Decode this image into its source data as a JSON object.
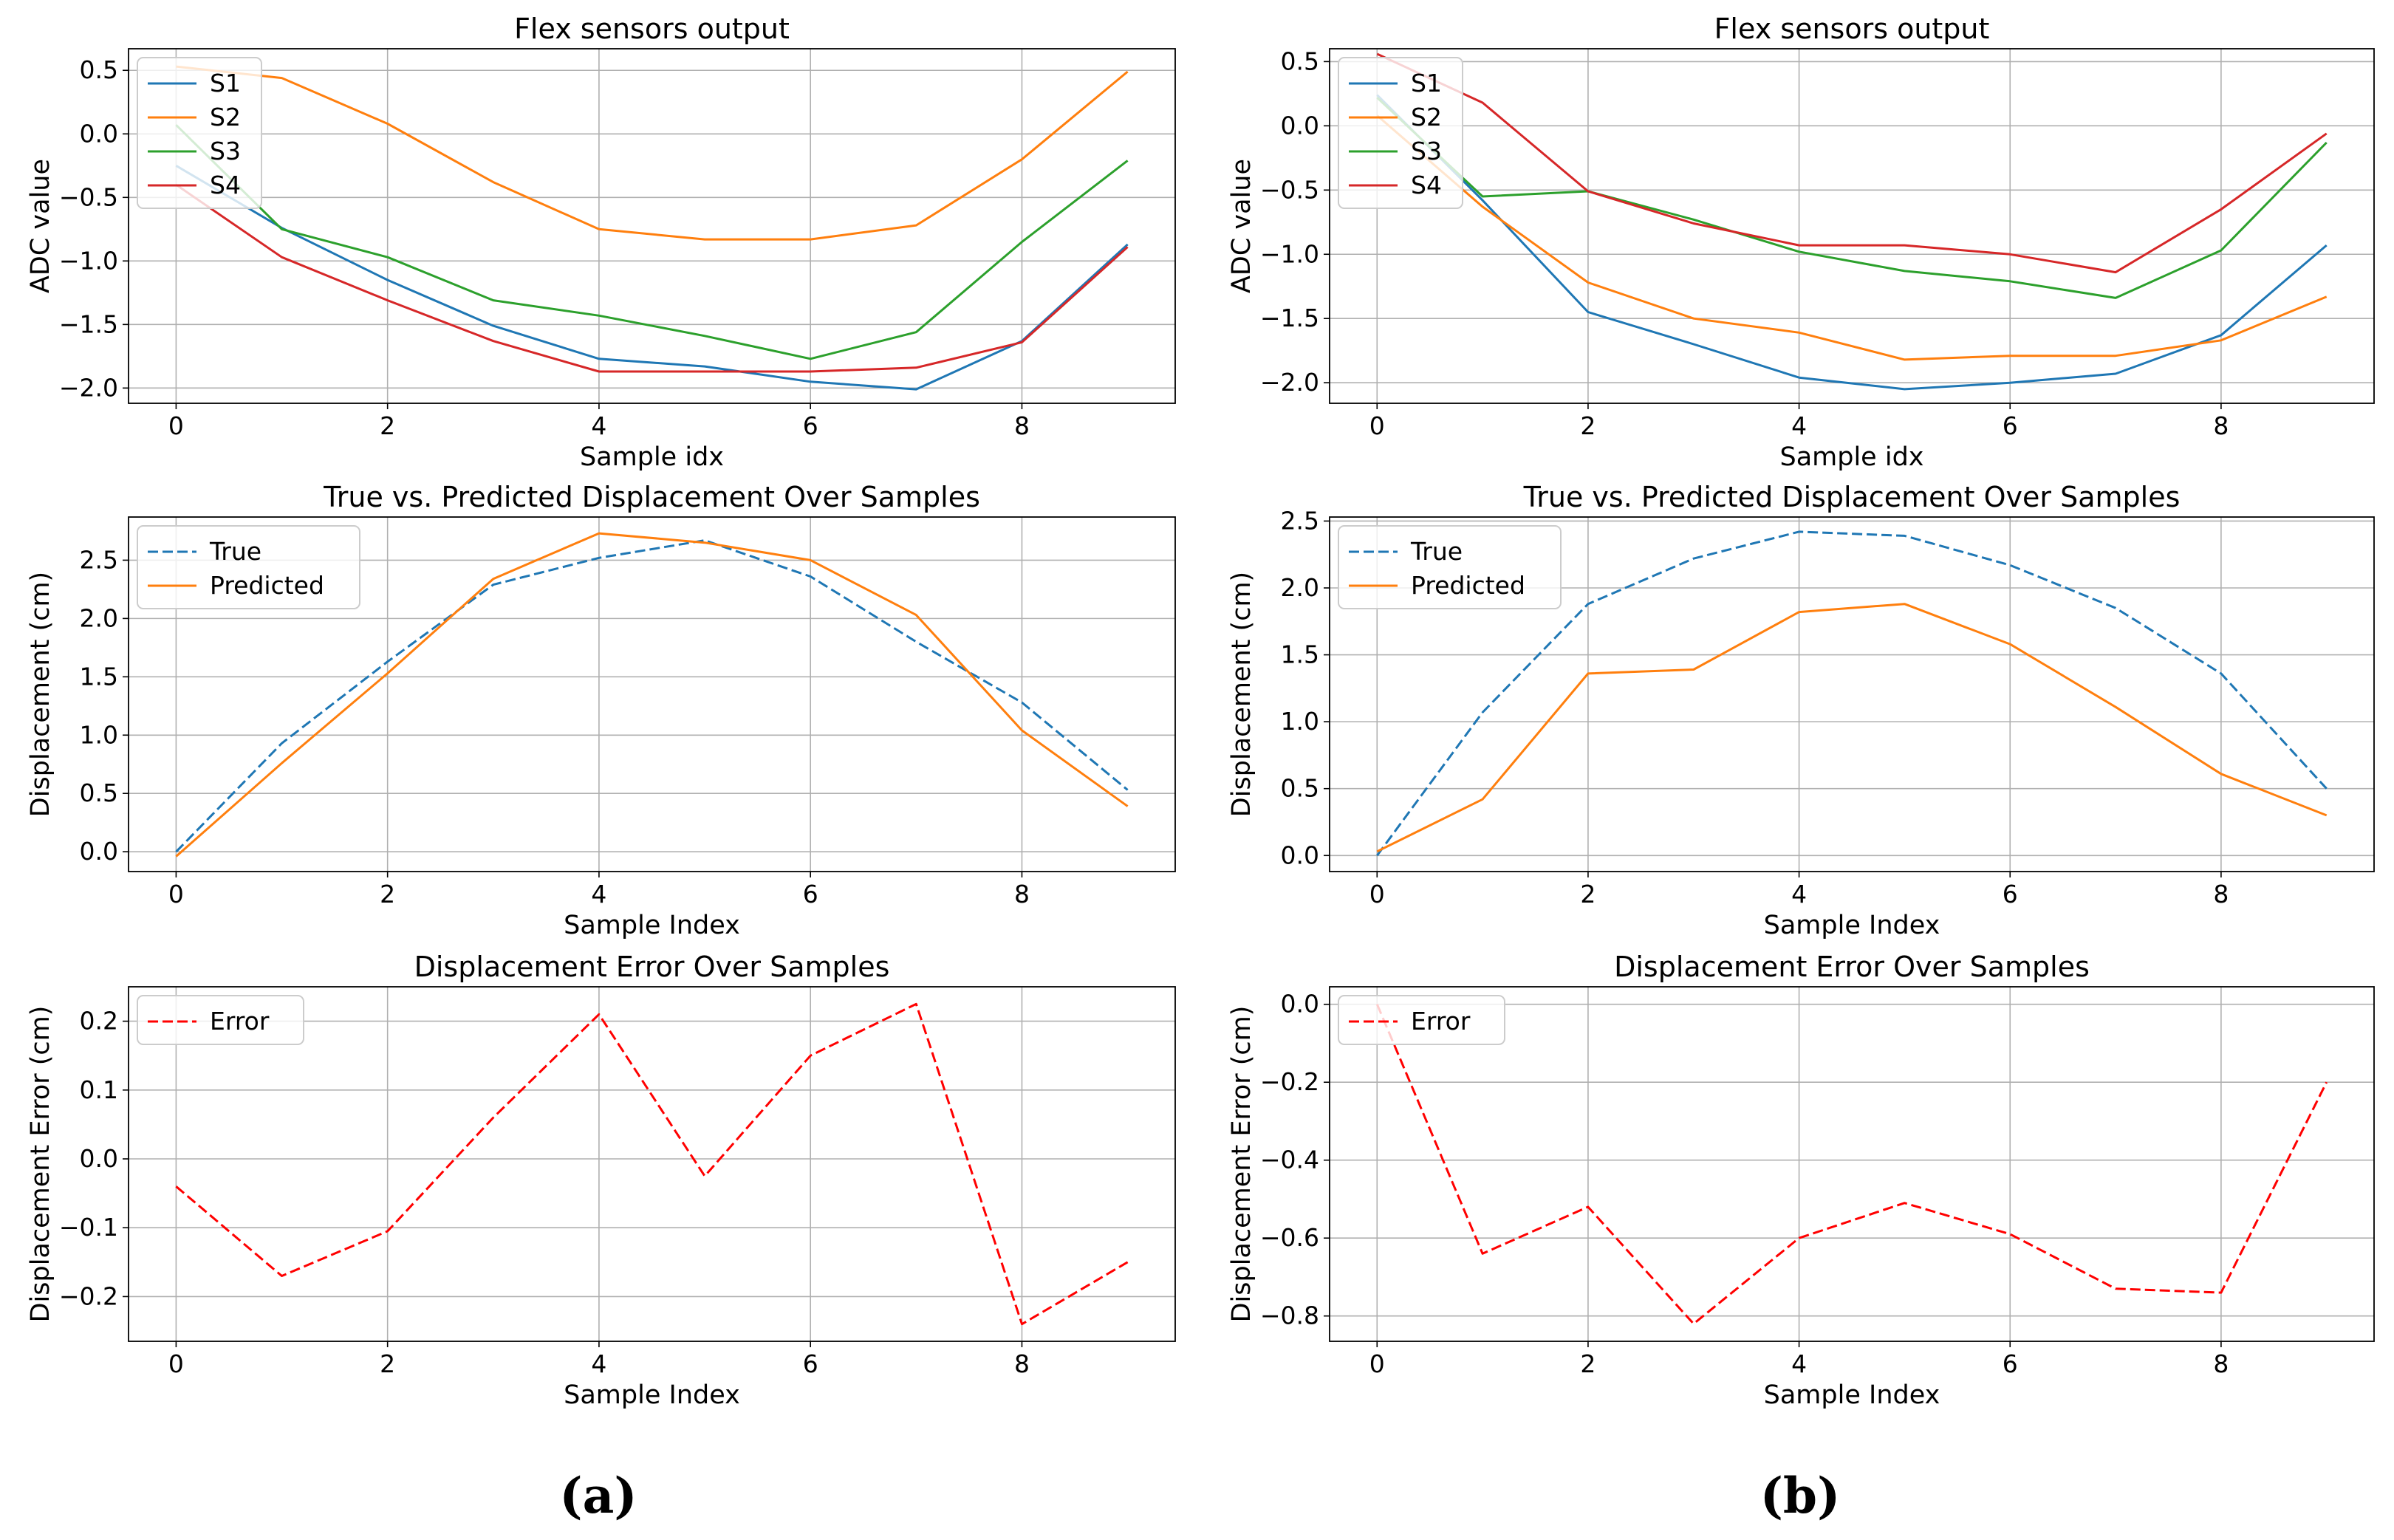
{
  "panel_labels": [
    "(a)",
    "(b)"
  ],
  "colors": {
    "c0": "#1f77b4",
    "c1": "#ff7f0e",
    "c2": "#2ca02c",
    "c3": "#d62728",
    "error": "#ff0000",
    "grid": "#b0b0b0",
    "axis": "#000000"
  },
  "chart_data": [
    {
      "id": "a1",
      "type": "line",
      "title": "Flex sensors output",
      "xlabel": "Sample idx",
      "ylabel": "ADC value",
      "xlim": [
        -0.45,
        9.45
      ],
      "ylim": [
        -2.12,
        0.67
      ],
      "xticks": [
        0,
        2,
        4,
        6,
        8
      ],
      "xtick_labels": [
        "0",
        "2",
        "4",
        "6",
        "8"
      ],
      "yticks": [
        0.5,
        0.0,
        -0.5,
        -1.0,
        -1.5,
        -2.0
      ],
      "ytick_labels": [
        "0.5",
        "0.0",
        "−0.5",
        "−1.0",
        "−1.5",
        "−2.0"
      ],
      "grid": true,
      "legend_position": "upper left",
      "x": [
        0,
        1,
        2,
        3,
        4,
        5,
        6,
        7,
        8,
        9
      ],
      "series": [
        {
          "name": "S1",
          "color": "#1f77b4",
          "dash": "solid",
          "values": [
            -0.25,
            -0.74,
            -1.15,
            -1.51,
            -1.77,
            -1.83,
            -1.95,
            -2.01,
            -1.63,
            -0.87
          ]
        },
        {
          "name": "S2",
          "color": "#ff7f0e",
          "dash": "solid",
          "values": [
            0.53,
            0.44,
            0.08,
            -0.38,
            -0.75,
            -0.83,
            -0.83,
            -0.72,
            -0.2,
            0.49
          ]
        },
        {
          "name": "S3",
          "color": "#2ca02c",
          "dash": "solid",
          "values": [
            0.07,
            -0.75,
            -0.97,
            -1.31,
            -1.43,
            -1.59,
            -1.77,
            -1.56,
            -0.85,
            -0.21
          ]
        },
        {
          "name": "S4",
          "color": "#d62728",
          "dash": "solid",
          "values": [
            -0.4,
            -0.97,
            -1.31,
            -1.63,
            -1.87,
            -1.87,
            -1.87,
            -1.84,
            -1.64,
            -0.89
          ]
        }
      ]
    },
    {
      "id": "b1",
      "type": "line",
      "title": "Flex sensors output",
      "xlabel": "Sample idx",
      "ylabel": "ADC value",
      "xlim": [
        -0.45,
        9.45
      ],
      "ylim": [
        -2.16,
        0.6
      ],
      "xticks": [
        0,
        2,
        4,
        6,
        8
      ],
      "xtick_labels": [
        "0",
        "2",
        "4",
        "6",
        "8"
      ],
      "yticks": [
        0.5,
        0.0,
        -0.5,
        -1.0,
        -1.5,
        -2.0
      ],
      "ytick_labels": [
        "0.5",
        "0.0",
        "−0.5",
        "−1.0",
        "−1.5",
        "−2.0"
      ],
      "grid": true,
      "legend_position": "upper left",
      "x": [
        0,
        1,
        2,
        3,
        4,
        5,
        6,
        7,
        8,
        9
      ],
      "series": [
        {
          "name": "S1",
          "color": "#1f77b4",
          "dash": "solid",
          "values": [
            0.24,
            -0.58,
            -1.45,
            -1.7,
            -1.96,
            -2.05,
            -2.0,
            -1.93,
            -1.63,
            -0.93
          ]
        },
        {
          "name": "S2",
          "color": "#ff7f0e",
          "dash": "solid",
          "values": [
            0.08,
            -0.63,
            -1.22,
            -1.5,
            -1.61,
            -1.82,
            -1.79,
            -1.79,
            -1.67,
            -1.33
          ]
        },
        {
          "name": "S3",
          "color": "#2ca02c",
          "dash": "solid",
          "values": [
            0.22,
            -0.55,
            -0.51,
            -0.73,
            -0.98,
            -1.13,
            -1.21,
            -1.34,
            -0.97,
            -0.13
          ]
        },
        {
          "name": "S4",
          "color": "#d62728",
          "dash": "solid",
          "values": [
            0.56,
            0.18,
            -0.51,
            -0.76,
            -0.93,
            -0.93,
            -1.0,
            -1.14,
            -0.65,
            -0.06
          ]
        }
      ]
    },
    {
      "id": "a2",
      "type": "line",
      "title": "True vs. Predicted Displacement Over Samples",
      "xlabel": "Sample Index",
      "ylabel": "Displacement (cm)",
      "xlim": [
        -0.45,
        9.45
      ],
      "ylim": [
        -0.17,
        2.87
      ],
      "xticks": [
        0,
        2,
        4,
        6,
        8
      ],
      "xtick_labels": [
        "0",
        "2",
        "4",
        "6",
        "8"
      ],
      "yticks": [
        0.0,
        0.5,
        1.0,
        1.5,
        2.0,
        2.5
      ],
      "ytick_labels": [
        "0.0",
        "0.5",
        "1.0",
        "1.5",
        "2.0",
        "2.5"
      ],
      "grid": true,
      "legend_position": "upper left",
      "x": [
        0,
        1,
        2,
        3,
        4,
        5,
        6,
        7,
        8,
        9
      ],
      "series": [
        {
          "name": "True",
          "color": "#1f77b4",
          "dash": "dashed",
          "values": [
            0.0,
            0.93,
            1.63,
            2.29,
            2.52,
            2.67,
            2.36,
            1.8,
            1.28,
            0.53
          ]
        },
        {
          "name": "Predicted",
          "color": "#ff7f0e",
          "dash": "solid",
          "values": [
            -0.04,
            0.76,
            1.53,
            2.34,
            2.73,
            2.65,
            2.5,
            2.03,
            1.04,
            0.39
          ]
        }
      ]
    },
    {
      "id": "b2",
      "type": "line",
      "title": "True vs. Predicted Displacement Over Samples",
      "xlabel": "Sample Index",
      "ylabel": "Displacement (cm)",
      "xlim": [
        -0.45,
        9.45
      ],
      "ylim": [
        -0.12,
        2.53
      ],
      "xticks": [
        0,
        2,
        4,
        6,
        8
      ],
      "xtick_labels": [
        "0",
        "2",
        "4",
        "6",
        "8"
      ],
      "yticks": [
        0.0,
        0.5,
        1.0,
        1.5,
        2.0,
        2.5
      ],
      "ytick_labels": [
        "0.0",
        "0.5",
        "1.0",
        "1.5",
        "2.0",
        "2.5"
      ],
      "grid": true,
      "legend_position": "upper left",
      "x": [
        0,
        1,
        2,
        3,
        4,
        5,
        6,
        7,
        8,
        9
      ],
      "series": [
        {
          "name": "True",
          "color": "#1f77b4",
          "dash": "dashed",
          "values": [
            0.0,
            1.07,
            1.88,
            2.22,
            2.42,
            2.39,
            2.17,
            1.85,
            1.36,
            0.5
          ]
        },
        {
          "name": "Predicted",
          "color": "#ff7f0e",
          "dash": "solid",
          "values": [
            0.03,
            0.42,
            1.36,
            1.39,
            1.82,
            1.88,
            1.58,
            1.11,
            0.61,
            0.3
          ]
        }
      ]
    },
    {
      "id": "a3",
      "type": "line",
      "title": "Displacement Error Over Samples",
      "xlabel": "Sample Index",
      "ylabel": "Displacement Error (cm)",
      "xlim": [
        -0.45,
        9.45
      ],
      "ylim": [
        -0.265,
        0.25
      ],
      "xticks": [
        0,
        2,
        4,
        6,
        8
      ],
      "xtick_labels": [
        "0",
        "2",
        "4",
        "6",
        "8"
      ],
      "yticks": [
        0.2,
        0.1,
        0.0,
        -0.1,
        -0.2
      ],
      "ytick_labels": [
        "0.2",
        "0.1",
        "0.0",
        "−0.1",
        "−0.2"
      ],
      "grid": true,
      "legend_position": "upper left",
      "x": [
        0,
        1,
        2,
        3,
        4,
        5,
        6,
        7,
        8,
        9
      ],
      "series": [
        {
          "name": "Error",
          "color": "#ff0000",
          "dash": "dashed",
          "values": [
            -0.04,
            -0.17,
            -0.105,
            0.06,
            0.21,
            -0.025,
            0.15,
            0.225,
            -0.24,
            -0.15
          ]
        }
      ]
    },
    {
      "id": "b3",
      "type": "line",
      "title": "Displacement Error Over Samples",
      "xlabel": "Sample Index",
      "ylabel": "Displacement Error (cm)",
      "xlim": [
        -0.45,
        9.45
      ],
      "ylim": [
        -0.865,
        0.045
      ],
      "xticks": [
        0,
        2,
        4,
        6,
        8
      ],
      "xtick_labels": [
        "0",
        "2",
        "4",
        "6",
        "8"
      ],
      "yticks": [
        0.0,
        -0.2,
        -0.4,
        -0.6,
        -0.8
      ],
      "ytick_labels": [
        "0.0",
        "−0.2",
        "−0.4",
        "−0.6",
        "−0.8"
      ],
      "grid": true,
      "legend_position": "upper left",
      "x": [
        0,
        1,
        2,
        3,
        4,
        5,
        6,
        7,
        8,
        9
      ],
      "series": [
        {
          "name": "Error",
          "color": "#ff0000",
          "dash": "dashed",
          "values": [
            0.0,
            -0.64,
            -0.52,
            -0.82,
            -0.6,
            -0.51,
            -0.59,
            -0.73,
            -0.74,
            -0.2
          ]
        }
      ]
    }
  ]
}
